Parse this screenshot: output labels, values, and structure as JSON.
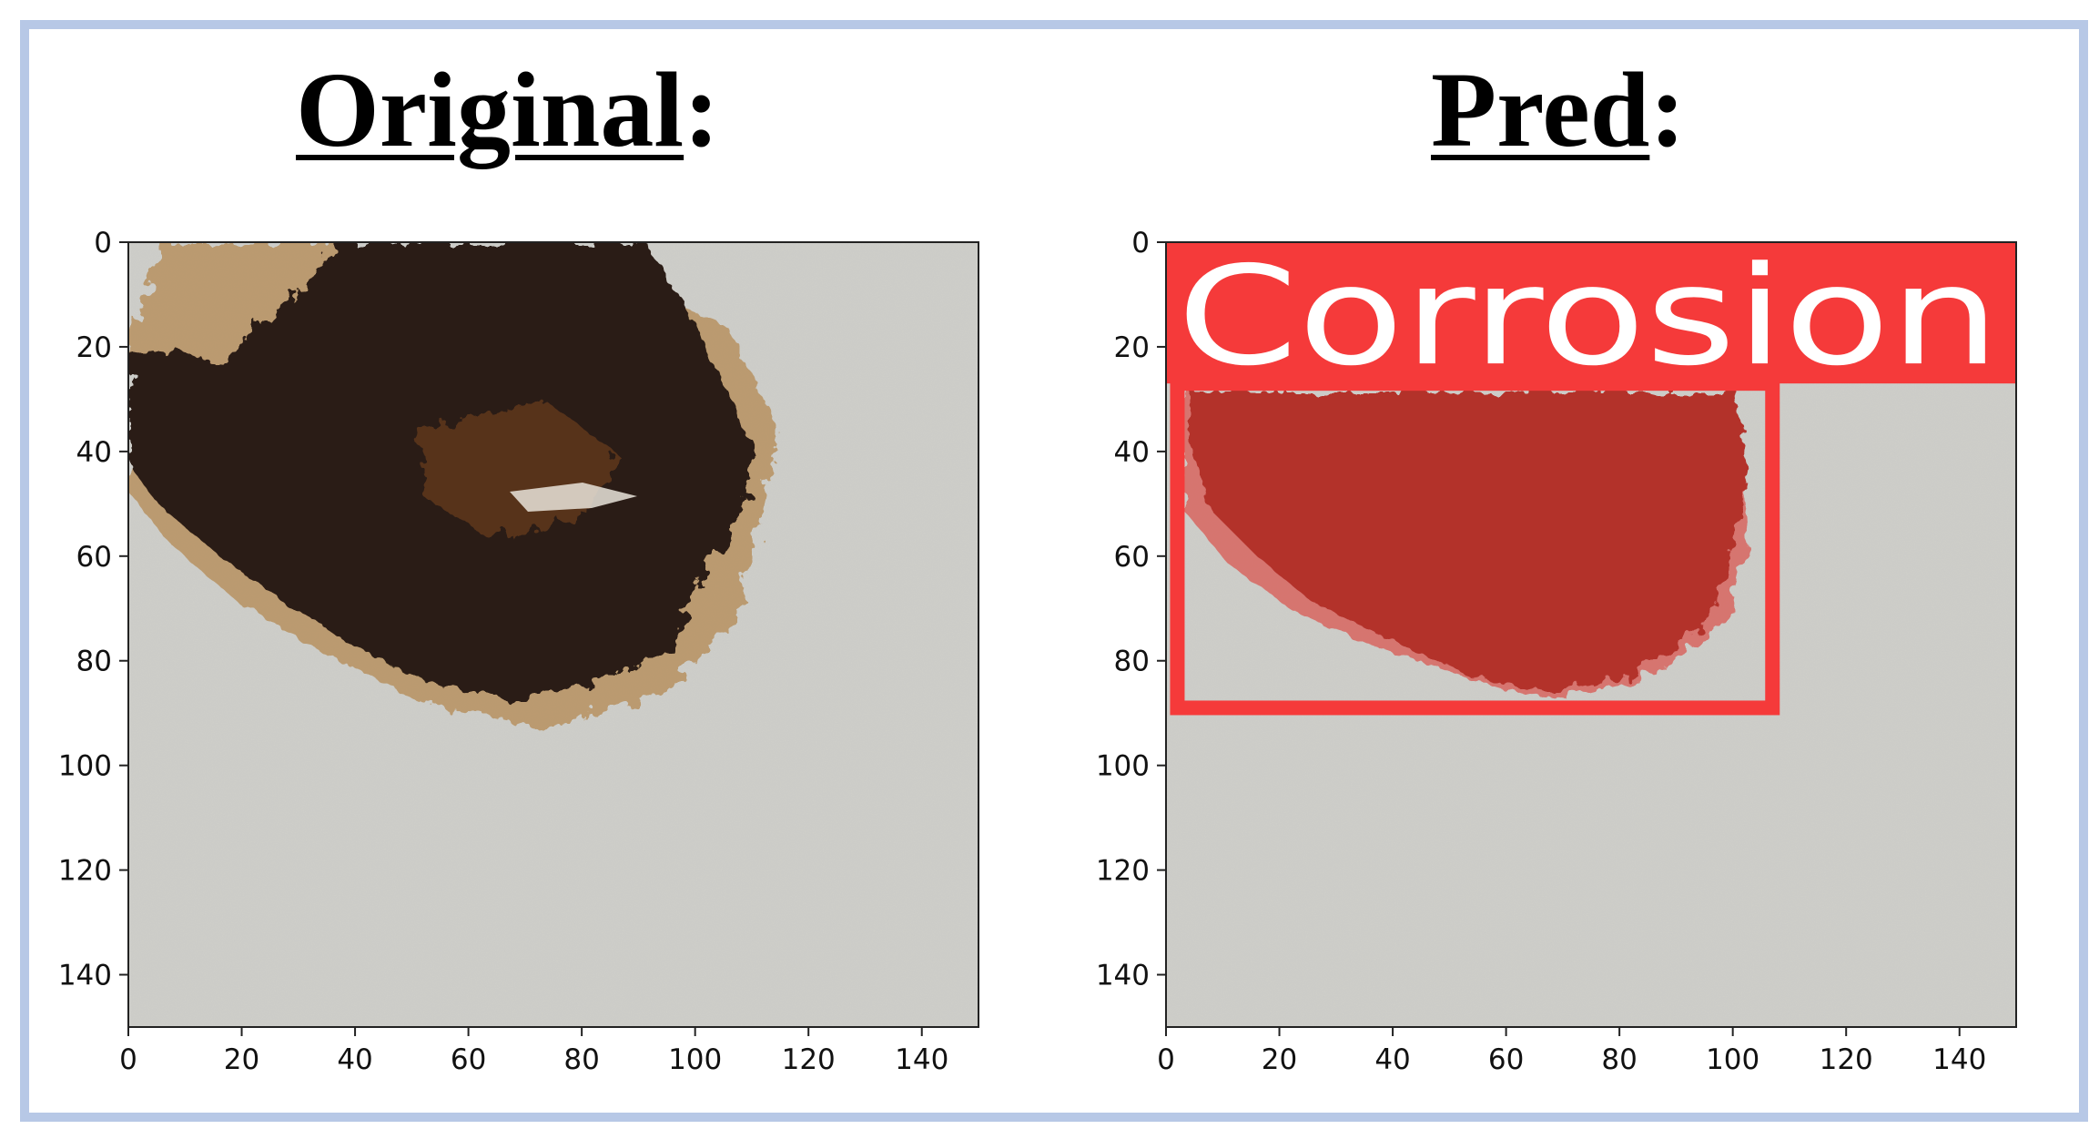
{
  "panels": [
    {
      "title": "Original",
      "title_suffix": ":",
      "image": "wall surface with dark rust corrosion patch",
      "axes": {
        "x_ticks": [
          "0",
          "20",
          "40",
          "60",
          "80",
          "100",
          "120",
          "140"
        ],
        "y_ticks": [
          "0",
          "20",
          "40",
          "60",
          "80",
          "100",
          "120",
          "140"
        ],
        "range": [
          0,
          150
        ]
      }
    },
    {
      "title": "Pred",
      "title_suffix": ":",
      "image": "wall surface with corrosion patch highlighted in red",
      "axes": {
        "x_ticks": [
          "0",
          "20",
          "40",
          "60",
          "80",
          "100",
          "120",
          "140"
        ],
        "y_ticks": [
          "0",
          "20",
          "40",
          "60",
          "80",
          "100",
          "120",
          "140"
        ],
        "range": [
          0,
          150
        ]
      },
      "detection": {
        "label": "Corrosion",
        "box": {
          "x_min": 2,
          "y_min": 27,
          "x_max": 107,
          "y_max": 89
        },
        "label_band": {
          "y_min": 0,
          "y_max": 27
        },
        "color": "#f53a3a"
      }
    }
  ],
  "colors": {
    "wall": "#cfcfca",
    "rust_dark": "#2a1a12",
    "rust_brown": "#6b3d1f",
    "rust_stain": "#b58a52",
    "mask": "#b3302c",
    "border": "#b7c8e6"
  }
}
